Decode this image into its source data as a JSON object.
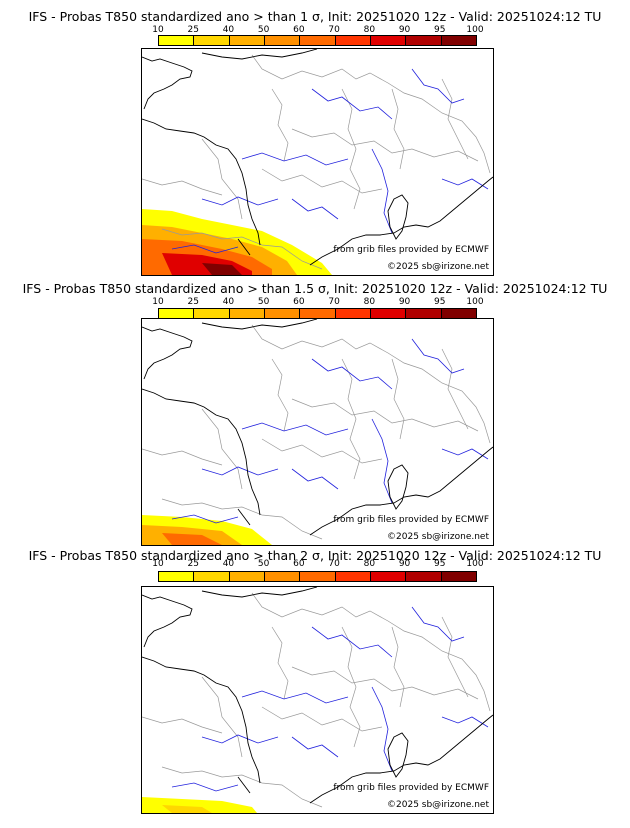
{
  "colorbar": {
    "ticks": [
      "10",
      "25",
      "40",
      "50",
      "60",
      "70",
      "80",
      "90",
      "95",
      "100"
    ],
    "colors": [
      "#ffff00",
      "#ffd700",
      "#ffb000",
      "#ff9000",
      "#ff6a00",
      "#ff3500",
      "#e00000",
      "#b00000",
      "#800000"
    ]
  },
  "panels": [
    {
      "title": "IFS - Probas T850  standardized ano > than 1 σ, Init: 20251020 12z - Valid: 20251024:12 TU",
      "source": "from grib files provided by ECMWF",
      "copyright": "©2025 sb@irizone.net",
      "data_label": "prob_1_sigma"
    },
    {
      "title": "IFS - Probas T850  standardized ano > than 1.5 σ, Init: 20251020 12z - Valid: 20251024:12 TU",
      "source": "from grib files provided by ECMWF",
      "copyright": "©2025 sb@irizone.net",
      "data_label": "prob_1_5_sigma"
    },
    {
      "title": "IFS - Probas T850  standardized ano > than 2 σ, Init: 20251020 12z - Valid: 20251024:12 TU",
      "source": "from grib files provided by ECMWF",
      "copyright": "©2025 sb@irizone.net",
      "data_label": "prob_2_sigma"
    }
  ]
}
